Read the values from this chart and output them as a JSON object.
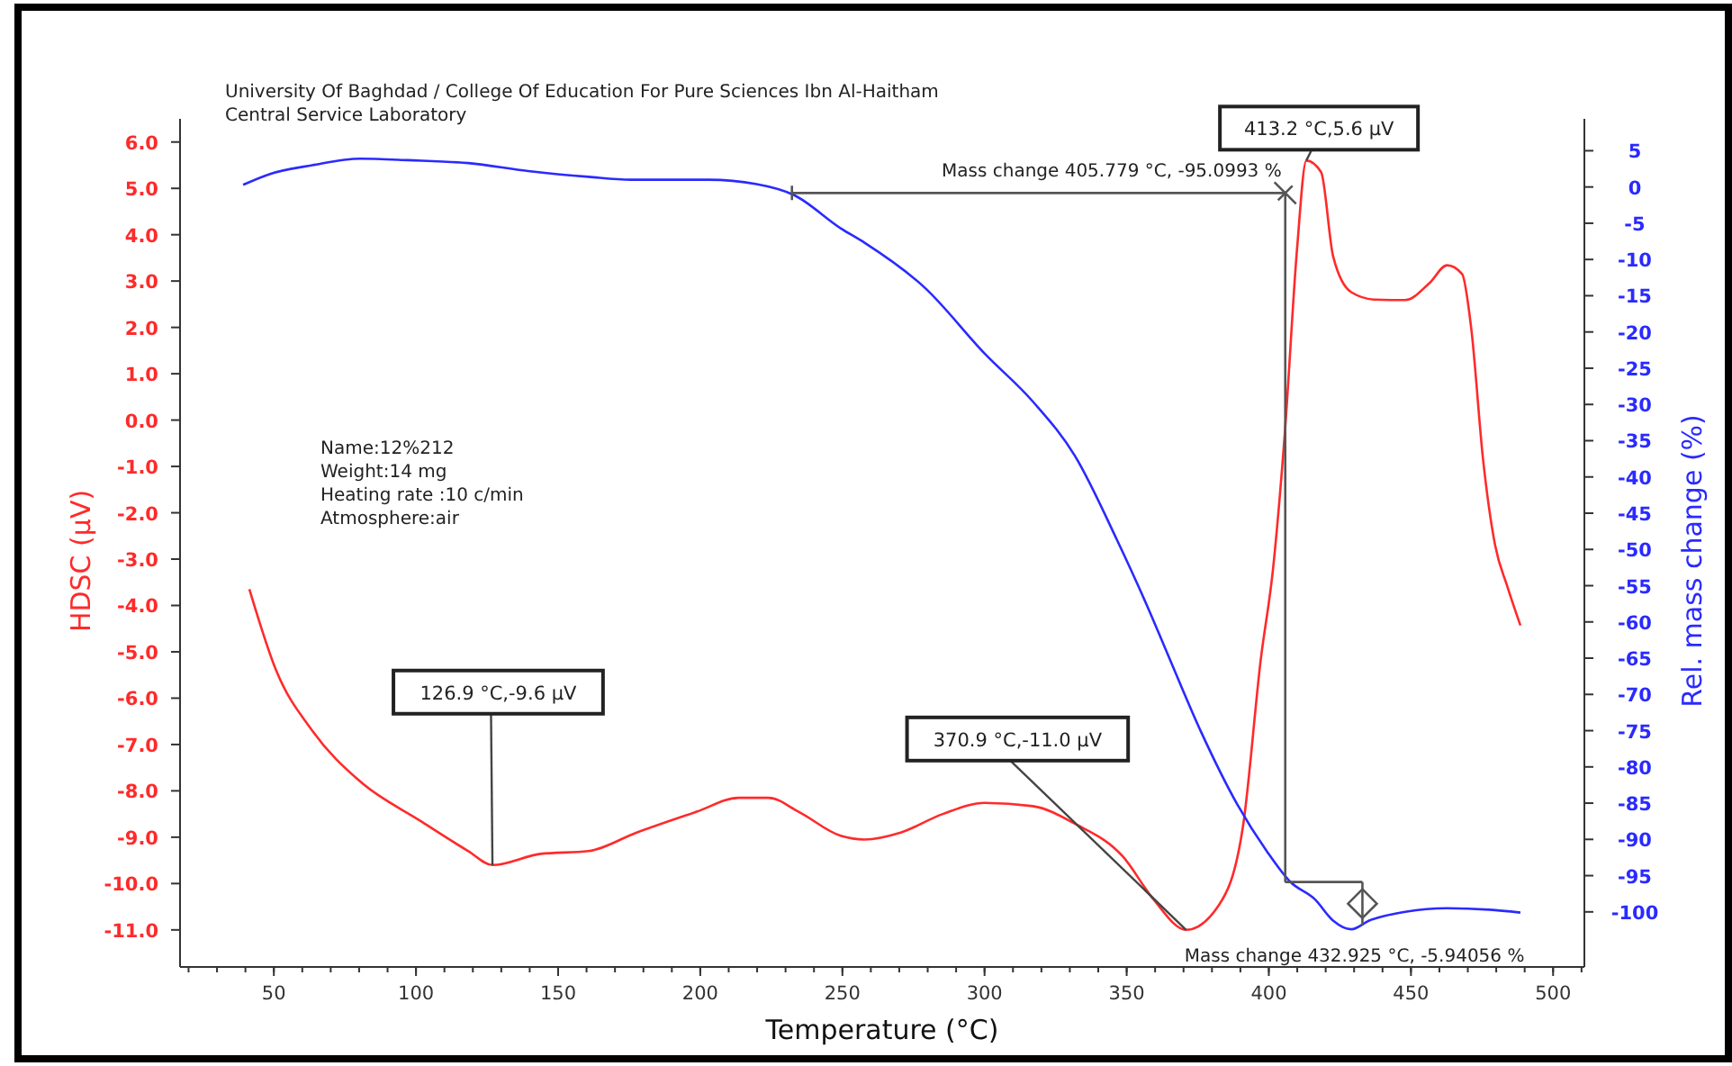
{
  "chart_data": {
    "type": "line",
    "title": "University Of Baghdad / College Of Education For Pure Sciences Ibn Al-Haitham",
    "subtitle": "Central Service Laboratory",
    "xlabel": "Temperature (°C)",
    "ylabel": "HDSC (µV)",
    "y2label": "Rel. mass change (%)",
    "xlim": [
      17,
      511
    ],
    "xticks": [
      50,
      100,
      150,
      200,
      250,
      300,
      350,
      400,
      450,
      500
    ],
    "ylim": [
      -11.8,
      6.5
    ],
    "yticks": [
      {
        "value": 6,
        "label": "6.0"
      },
      {
        "value": 5,
        "label": "5.0"
      },
      {
        "value": 4,
        "label": "4.0"
      },
      {
        "value": 3,
        "label": "3.0"
      },
      {
        "value": 2,
        "label": "2.0"
      },
      {
        "value": 1,
        "label": "1.0"
      },
      {
        "value": 0,
        "label": "0.0"
      },
      {
        "value": -1,
        "label": "-1.0"
      },
      {
        "value": -2,
        "label": "-2.0"
      },
      {
        "value": -3,
        "label": "-3.0"
      },
      {
        "value": -4,
        "label": "-4.0"
      },
      {
        "value": -5,
        "label": "-5.0"
      },
      {
        "value": -6,
        "label": "-6.0"
      },
      {
        "value": -7,
        "label": "-7.0"
      },
      {
        "value": -8,
        "label": "-8.0"
      },
      {
        "value": -9,
        "label": "-9.0"
      },
      {
        "value": -10,
        "label": "-10.0"
      },
      {
        "value": -11,
        "label": "-11.0"
      }
    ],
    "y2lim": [
      -107.6,
      9.4
    ],
    "y2ticks": [
      5,
      0,
      -5,
      -10,
      -15,
      -20,
      -25,
      -30,
      -35,
      -40,
      -45,
      -50,
      -55,
      -60,
      -65,
      -70,
      -75,
      -80,
      -85,
      -90,
      -95,
      -100
    ],
    "grid": false,
    "ref_lines": [
      {
        "axis": "x",
        "value": 405.779,
        "color": "#555555"
      }
    ],
    "marker": "none",
    "line_style": "solid",
    "series": [
      {
        "color": "#ff2a2a",
        "x": [
          41.4,
          50.8,
          63.5,
          80.4,
          101.6,
          118.4,
          126.9,
          143.8,
          160.7,
          177.6,
          198.7,
          213.5,
          224,
          234.6,
          249.4,
          257.8,
          270.5,
          285.3,
          300.1,
          317,
          331.8,
          348.7,
          359.3,
          370.9,
          382.5,
          390.9,
          397.2,
          401.5,
          405.7,
          409.9,
          413.2,
          418.4,
          422.6,
          429,
          437.4,
          448,
          456.4,
          462.7,
          468,
          471.2,
          475.4,
          479.6,
          483.9,
          488.5
        ],
        "values": [
          -3.65,
          -5.4,
          -6.7,
          -7.8,
          -8.65,
          -9.3,
          -9.6,
          -9.36,
          -9.3,
          -8.9,
          -8.45,
          -8.15,
          -8.15,
          -8.45,
          -8.97,
          -9.05,
          -8.9,
          -8.5,
          -8.26,
          -8.33,
          -8.71,
          -9.42,
          -10.33,
          -11.0,
          -10.46,
          -8.77,
          -5.15,
          -3.2,
          -0.22,
          3.67,
          5.6,
          5.35,
          3.54,
          2.76,
          2.6,
          2.59,
          2.95,
          3.34,
          3.15,
          1.98,
          -0.87,
          -2.7,
          -3.59,
          -4.43
        ]
      },
      {
        "color": "#2a2aff",
        "axis": "y2",
        "x": [
          39.2,
          48.7,
          63.5,
          80.4,
          97.3,
          118.4,
          139.5,
          160.7,
          175.5,
          202.9,
          219.8,
          232.9,
          249.4,
          257.8,
          279,
          300.1,
          317,
          331.8,
          346.6,
          357.2,
          363.5,
          376.2,
          388.8,
          399.4,
          407.4,
          416.3,
          422.6,
          429,
          435.3,
          448,
          462.7,
          477.5,
          488.5
        ],
        "values": [
          0.3,
          1.8,
          3.0,
          3.9,
          3.7,
          3.3,
          2.2,
          1.4,
          1.0,
          1.0,
          0.4,
          -1.1,
          -5.7,
          -7.7,
          -13.9,
          -23.0,
          -29.6,
          -37.1,
          -48.7,
          -57.8,
          -63.6,
          -75.2,
          -85.1,
          -91.7,
          -95.8,
          -98.3,
          -101.2,
          -102.4,
          -101.2,
          -100.0,
          -99.5,
          -99.7,
          -100.1
        ]
      }
    ],
    "annotations": [
      "Name:12%212",
      "Weight:14 mg",
      "Heating rate :10 c/min",
      "Atmosphere:air",
      {
        "text": "Mass change 405.779 °C,  -95.0993 %",
        "x": 405.779,
        "y": 4.9
      },
      {
        "text": "Mass change 432.925 °C,  -5.94056 %",
        "x": 432.925,
        "y": -10.9
      },
      {
        "text": "126.9 °C,-9.6 µV",
        "x": 126.9,
        "y": -9.6
      },
      {
        "text": "370.9 °C,-11.0 µV",
        "x": 370.9,
        "y": -11.0
      },
      {
        "text": "413.2 °C,5.6 µV",
        "x": 413.2,
        "y": 5.6
      }
    ]
  }
}
